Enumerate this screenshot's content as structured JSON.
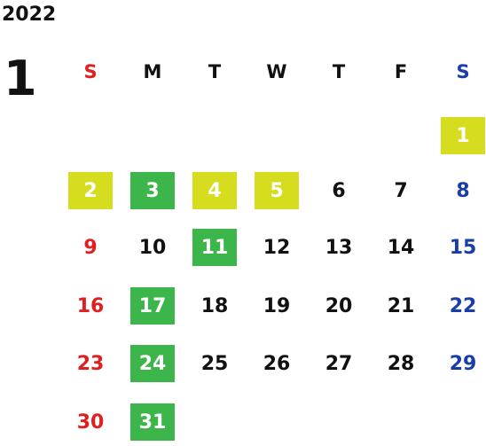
{
  "year": "2022",
  "month": "1",
  "weekdays": [
    "S",
    "M",
    "T",
    "W",
    "T",
    "F",
    "S"
  ],
  "colors": {
    "sunday_text": "#e02020",
    "saturday_text": "#1a3ea8",
    "weekday_text": "#111111",
    "highlight_yellow": "#d5dd1e",
    "highlight_green": "#3cb54a",
    "highlight_text": "#ffffff"
  },
  "first_weekday_index": 6,
  "days_in_month": 31,
  "highlights": {
    "1": "yellow",
    "2": "yellow",
    "3": "green",
    "4": "yellow",
    "5": "yellow",
    "11": "green",
    "17": "green",
    "24": "green",
    "31": "green"
  }
}
